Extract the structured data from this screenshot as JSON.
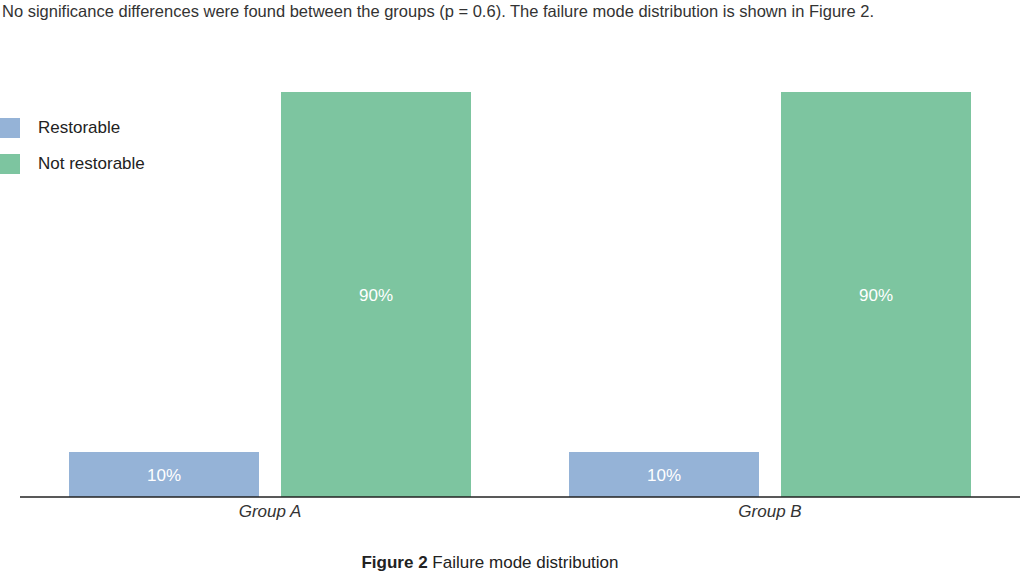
{
  "chart_data": {
    "type": "bar",
    "subtitle": "No significance differences were found between the groups (p = 0.6). The failure mode distribution is shown in Figure 2.",
    "caption_label": "Figure 2",
    "caption": "Failure mode distribution",
    "categories": [
      "Group A",
      "Group B"
    ],
    "series": [
      {
        "name": "Restorable",
        "color": "#95b3d7",
        "values": [
          10,
          10
        ],
        "value_labels": [
          "10%",
          "10%"
        ]
      },
      {
        "name": "Not restorable",
        "color": "#7dc5a0",
        "values": [
          90,
          90
        ],
        "value_labels": [
          "90%",
          "90%"
        ]
      }
    ],
    "ylim": [
      0,
      100
    ],
    "tick_labels": "x",
    "data_labels": true,
    "legend": "top-left",
    "grid": false
  }
}
